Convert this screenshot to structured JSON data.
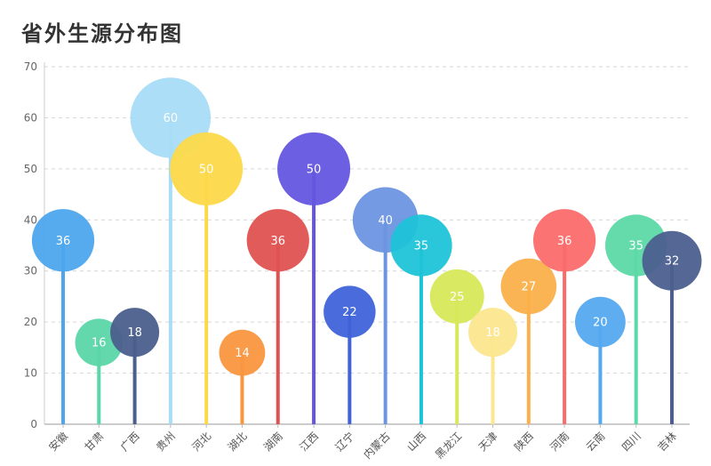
{
  "chart_data": {
    "type": "lollipop",
    "title": "省外生源分布图",
    "xlabel": "",
    "ylabel": "",
    "ylim": [
      0,
      70
    ],
    "yticks": [
      0,
      10,
      20,
      30,
      40,
      50,
      60,
      70
    ],
    "grid": true,
    "categories": [
      "安徽",
      "甘肃",
      "广西",
      "贵州",
      "河北",
      "湖北",
      "湖南",
      "江西",
      "辽宁",
      "内蒙古",
      "山西",
      "黑龙江",
      "天津",
      "陕西",
      "河南",
      "云南",
      "四川",
      "吉林"
    ],
    "values": [
      36,
      16,
      18,
      60,
      50,
      14,
      36,
      50,
      22,
      40,
      35,
      25,
      18,
      27,
      36,
      20,
      35,
      32
    ],
    "colors": [
      "#4da6ee",
      "#5bd6a8",
      "#4a5f8c",
      "#a8dcf7",
      "#fcd94a",
      "#f9963f",
      "#e05252",
      "#6556df",
      "#3f63d9",
      "#6b95e0",
      "#1fc3d8",
      "#d7e85a",
      "#fce68e",
      "#fbb04a",
      "#fc6b6b",
      "#55a9f0",
      "#5dd9a8",
      "#4c5f8f"
    ]
  }
}
